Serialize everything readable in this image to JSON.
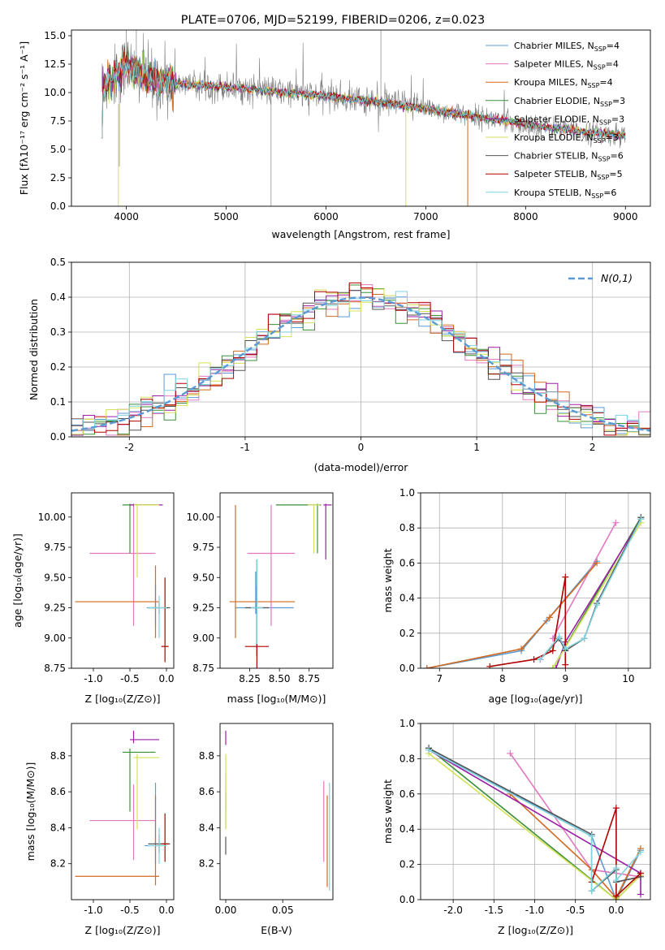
{
  "figure": {
    "title": "PLATE=0706, MJD=52199, FIBERID=0206, z=0.023"
  },
  "colors": {
    "Chabrier MILES": "#5b9bd5",
    "Salpeter MILES": "#e377c2",
    "Kroupa MILES": "#d2691e",
    "Chabrier ELODIE": "#3a8f3a",
    "Salpeter ELODIE": "#9b1fa6",
    "Kroupa ELODIE": "#d4e157",
    "Chabrier STELIB": "#555555",
    "Salpeter STELIB": "#b00000",
    "Kroupa STELIB": "#7fd3df",
    "data": "#808080",
    "normal": "#5b9bd5"
  },
  "chart_data": [
    {
      "id": "spectrum",
      "type": "line",
      "title": "PLATE=0706, MJD=52199, FIBERID=0206, z=0.023",
      "xlabel": "wavelength [Angstrom, rest frame]",
      "ylabel": "Flux [fλ10⁻¹⁷ erg cm⁻² s⁻¹ A⁻¹]",
      "xlim": [
        3450,
        9250
      ],
      "ylim": [
        0,
        15.5
      ],
      "xticks": [
        4000,
        5000,
        6000,
        7000,
        8000,
        9000
      ],
      "yticks": [
        0.0,
        2.5,
        5.0,
        7.5,
        10.0,
        12.5,
        15.0
      ],
      "grid": false,
      "legend_position": "top-right",
      "model_continuum": {
        "x": [
          3750,
          3900,
          4000,
          4100,
          4300,
          4600,
          5000,
          5500,
          6000,
          6500,
          7000,
          7500,
          8000,
          8500,
          9000
        ],
        "y": [
          10.5,
          11.5,
          12.5,
          11.7,
          11.0,
          10.7,
          10.5,
          10.1,
          9.7,
          9.2,
          8.6,
          7.9,
          7.2,
          6.6,
          6.2
        ]
      },
      "series_legend": [
        {
          "name": "Chabrier MILES, N",
          "sub": "SSP",
          "suffix": "=4"
        },
        {
          "name": "Salpeter MILES, N",
          "sub": "SSP",
          "suffix": "=4"
        },
        {
          "name": "Kroupa MILES, N",
          "sub": "SSP",
          "suffix": "=4"
        },
        {
          "name": "Chabrier ELODIE, N",
          "sub": "SSP",
          "suffix": "=3"
        },
        {
          "name": "Salpeter ELODIE, N",
          "sub": "SSP",
          "suffix": "=3"
        },
        {
          "name": "Kroupa ELODIE, N",
          "sub": "SSP",
          "suffix": "=3"
        },
        {
          "name": "Chabrier STELIB, N",
          "sub": "SSP",
          "suffix": "=6"
        },
        {
          "name": "Salpeter STELIB, N",
          "sub": "SSP",
          "suffix": "=5"
        },
        {
          "name": "Kroupa STELIB, N",
          "sub": "SSP",
          "suffix": "=6"
        }
      ]
    },
    {
      "id": "residuals",
      "type": "histogram",
      "xlabel": "(data-model)/error",
      "ylabel": "Normed distribution",
      "xlim": [
        -2.5,
        2.5
      ],
      "ylim": [
        0,
        0.5
      ],
      "xticks": [
        -2,
        -1,
        0,
        1,
        2
      ],
      "yticks": [
        0.0,
        0.1,
        0.2,
        0.3,
        0.4,
        0.5
      ],
      "grid": true,
      "legend": "N(0,1)",
      "legend_position": "top-right",
      "bin_width": 0.1,
      "bins_start": -2.5
    },
    {
      "id": "age_vs_Z",
      "type": "errorbar",
      "xlabel": "Z [log₁₀(Z/Z⊙)]",
      "ylabel": "age  [log₁₀(age/yr)]",
      "xlim": [
        -1.3,
        0.1
      ],
      "ylim": [
        8.75,
        10.2
      ],
      "xticks": [
        -1.0,
        -0.5,
        0.0
      ],
      "yticks": [
        8.75,
        9.0,
        9.25,
        9.5,
        9.75,
        10.0
      ],
      "points": [
        {
          "model": "Chabrier MILES",
          "x": -0.15,
          "y": 9.25,
          "xerr": [
            0.12,
            0.05
          ],
          "yerr": [
            0.15,
            0.2
          ]
        },
        {
          "model": "Salpeter MILES",
          "x": -0.45,
          "y": 9.7,
          "xerr": [
            0.6,
            0.3
          ],
          "yerr": [
            0.6,
            0.4
          ]
        },
        {
          "model": "Kroupa MILES",
          "x": -0.15,
          "y": 9.3,
          "xerr": [
            1.1,
            0.05
          ],
          "yerr": [
            0.3,
            0.3
          ]
        },
        {
          "model": "Chabrier ELODIE",
          "x": -0.5,
          "y": 10.1,
          "xerr": [
            0.1,
            0.35
          ],
          "yerr": [
            0.4,
            0.01
          ]
        },
        {
          "model": "Salpeter ELODIE",
          "x": -0.45,
          "y": 10.1,
          "xerr": [
            0.05,
            0.4
          ],
          "yerr": [
            0.01,
            0.01
          ]
        },
        {
          "model": "Kroupa ELODIE",
          "x": -0.4,
          "y": 10.1,
          "xerr": [
            0.05,
            0.3
          ],
          "yerr": [
            0.6,
            0.01
          ]
        },
        {
          "model": "Chabrier STELIB",
          "x": -0.1,
          "y": 9.25,
          "xerr": [
            0.15,
            0.15
          ],
          "yerr": [
            0.05,
            0.05
          ]
        },
        {
          "model": "Salpeter STELIB",
          "x": -0.02,
          "y": 8.93,
          "xerr": [
            0.05,
            0.05
          ],
          "yerr": [
            0.13,
            0.57
          ]
        },
        {
          "model": "Kroupa STELIB",
          "x": -0.1,
          "y": 9.25,
          "xerr": [
            0.15,
            0.1
          ],
          "yerr": [
            0.25,
            0.1
          ]
        }
      ]
    },
    {
      "id": "age_vs_mass",
      "type": "errorbar",
      "xlabel": "mass [log₁₀(M/M⊙)]",
      "xlim": [
        8.0,
        8.95
      ],
      "ylim": [
        8.75,
        10.2
      ],
      "xticks": [
        8.25,
        8.5,
        8.75
      ],
      "yticks": [
        8.75,
        9.0,
        9.25,
        9.5,
        9.75,
        10.0
      ],
      "points": [
        {
          "model": "Chabrier MILES",
          "x": 8.3,
          "y": 9.25,
          "xerr": [
            0.17,
            0.32
          ],
          "yerr": [
            0.05,
            0.3
          ]
        },
        {
          "model": "Salpeter MILES",
          "x": 8.43,
          "y": 9.7,
          "xerr": [
            0.2,
            0.2
          ],
          "yerr": [
            0.6,
            0.4
          ]
        },
        {
          "model": "Kroupa MILES",
          "x": 8.13,
          "y": 9.3,
          "xerr": [
            0.05,
            0.5
          ],
          "yerr": [
            0.3,
            0.8
          ]
        },
        {
          "model": "Chabrier ELODIE",
          "x": 8.82,
          "y": 10.1,
          "xerr": [
            0.35,
            0.03
          ],
          "yerr": [
            0.4,
            0.01
          ]
        },
        {
          "model": "Salpeter ELODIE",
          "x": 8.89,
          "y": 10.1,
          "xerr": [
            0.02,
            0.05
          ],
          "yerr": [
            0.45,
            0.01
          ]
        },
        {
          "model": "Kroupa ELODIE",
          "x": 8.79,
          "y": 10.1,
          "xerr": [
            0.05,
            0.05
          ],
          "yerr": [
            0.4,
            0.01
          ]
        },
        {
          "model": "Chabrier STELIB",
          "x": 8.31,
          "y": 9.25,
          "xerr": [
            0.1,
            0.1
          ],
          "yerr": [
            0.4,
            0.4
          ]
        },
        {
          "model": "Salpeter STELIB",
          "x": 8.31,
          "y": 8.93,
          "xerr": [
            0.1,
            0.1
          ],
          "yerr": [
            0.3,
            0.5
          ]
        },
        {
          "model": "Kroupa STELIB",
          "x": 8.31,
          "y": 9.25,
          "xerr": [
            0.05,
            0.05
          ],
          "yerr": [
            0.3,
            0.4
          ]
        }
      ]
    },
    {
      "id": "mass_weight_vs_age",
      "type": "line",
      "xlabel": "age  [log₁₀(age/yr)]",
      "ylabel": "mass weight",
      "xlim": [
        6.7,
        10.35
      ],
      "ylim": [
        0,
        1.0
      ],
      "xticks": [
        7,
        8,
        9,
        10
      ],
      "yticks": [
        0.0,
        0.2,
        0.4,
        0.6,
        0.8,
        1.0
      ],
      "grid": true,
      "series": [
        {
          "name": "Chabrier MILES",
          "x": [
            6.8,
            8.3,
            8.7,
            9.5
          ],
          "y": [
            0.0,
            0.1,
            0.27,
            0.61
          ]
        },
        {
          "name": "Salpeter MILES",
          "x": [
            8.8,
            9.8
          ],
          "y": [
            0.17,
            0.83
          ]
        },
        {
          "name": "Kroupa MILES",
          "x": [
            6.8,
            8.3,
            8.75,
            9.5
          ],
          "y": [
            0.0,
            0.11,
            0.29,
            0.6
          ]
        },
        {
          "name": "Chabrier ELODIE",
          "x": [
            8.8,
            10.2
          ],
          "y": [
            0.0,
            0.86
          ]
        },
        {
          "name": "Salpeter ELODIE",
          "x": [
            8.85,
            9.0,
            10.2
          ],
          "y": [
            0.0,
            0.15,
            0.85
          ]
        },
        {
          "name": "Kroupa ELODIE",
          "x": [
            8.8,
            10.2
          ],
          "y": [
            0.0,
            0.83
          ]
        },
        {
          "name": "Chabrier STELIB",
          "x": [
            8.6,
            8.9,
            9.0,
            9.3,
            9.5,
            10.2
          ],
          "y": [
            0.05,
            0.17,
            0.1,
            0.17,
            0.37,
            0.86
          ]
        },
        {
          "name": "Salpeter STELIB",
          "x": [
            7.8,
            8.5,
            8.8,
            9.0,
            9.0
          ],
          "y": [
            0.01,
            0.05,
            0.1,
            0.52,
            0.02
          ]
        },
        {
          "name": "Kroupa STELIB",
          "x": [
            8.6,
            8.9,
            9.0,
            9.3,
            9.5,
            10.2
          ],
          "y": [
            0.05,
            0.18,
            0.11,
            0.17,
            0.36,
            0.85
          ]
        }
      ]
    },
    {
      "id": "mass_vs_Z",
      "type": "errorbar",
      "xlabel": "Z [log₁₀(Z/Z⊙)]",
      "ylabel": "mass [log₁₀(M/M⊙)]",
      "xlim": [
        -1.3,
        0.1
      ],
      "ylim": [
        8.0,
        8.98
      ],
      "xticks": [
        -1.0,
        -0.5,
        0.0
      ],
      "yticks": [
        8.2,
        8.4,
        8.6,
        8.8
      ],
      "points": [
        {
          "model": "Chabrier MILES",
          "x": -0.15,
          "y": 8.3,
          "xerr": [
            0.15,
            0.05
          ],
          "yerr": [
            0.1,
            0.35
          ]
        },
        {
          "model": "Salpeter MILES",
          "x": -0.45,
          "y": 8.44,
          "xerr": [
            0.6,
            0.3
          ],
          "yerr": [
            0.22,
            0.2
          ]
        },
        {
          "model": "Kroupa MILES",
          "x": -0.15,
          "y": 8.13,
          "xerr": [
            1.1,
            0.05
          ],
          "yerr": [
            0.05,
            0.45
          ]
        },
        {
          "model": "Chabrier ELODIE",
          "x": -0.5,
          "y": 8.82,
          "xerr": [
            0.1,
            0.35
          ],
          "yerr": [
            0.33,
            0.02
          ]
        },
        {
          "model": "Salpeter ELODIE",
          "x": -0.45,
          "y": 8.89,
          "xerr": [
            0.05,
            0.35
          ],
          "yerr": [
            0.02,
            0.05
          ]
        },
        {
          "model": "Kroupa ELODIE",
          "x": -0.4,
          "y": 8.79,
          "xerr": [
            0.05,
            0.3
          ],
          "yerr": [
            0.4,
            0.02
          ]
        },
        {
          "model": "Chabrier STELIB",
          "x": -0.1,
          "y": 8.31,
          "xerr": [
            0.15,
            0.15
          ],
          "yerr": [
            0.05,
            0.05
          ]
        },
        {
          "model": "Salpeter STELIB",
          "x": -0.02,
          "y": 8.31,
          "xerr": [
            0.05,
            0.05
          ],
          "yerr": [
            0.1,
            0.17
          ]
        },
        {
          "model": "Kroupa STELIB",
          "x": -0.1,
          "y": 8.3,
          "xerr": [
            0.15,
            0.1
          ],
          "yerr": [
            0.1,
            0.1
          ]
        }
      ]
    },
    {
      "id": "mass_vs_ebv",
      "type": "errorbar",
      "xlabel": "E(B-V)",
      "xlim": [
        -0.005,
        0.094
      ],
      "ylim": [
        8.0,
        8.98
      ],
      "xticks": [
        0.0,
        0.05
      ],
      "yticks": [
        8.2,
        8.4,
        8.6,
        8.8
      ],
      "points": [
        {
          "model": "Chabrier MILES",
          "x": 0.0,
          "y": 8.5,
          "xerr": [
            0,
            0
          ],
          "yerr": [
            0.1,
            0.1
          ]
        },
        {
          "model": "Salpeter MILES",
          "x": 0.0,
          "y": 8.6,
          "xerr": [
            0,
            0
          ],
          "yerr": [
            0.1,
            0.1
          ]
        },
        {
          "model": "Salpeter ELODIE",
          "x": 0.0,
          "y": 8.89,
          "xerr": [
            0,
            0
          ],
          "yerr": [
            0.03,
            0.05
          ]
        },
        {
          "model": "Kroupa ELODIE",
          "x": 0.0,
          "y": 8.79,
          "xerr": [
            0,
            0
          ],
          "yerr": [
            0.4,
            0.02
          ]
        },
        {
          "model": "Chabrier STELIB",
          "x": 0.0,
          "y": 8.3,
          "xerr": [
            0,
            0
          ],
          "yerr": [
            0.05,
            0.05
          ]
        },
        {
          "model": "Salpeter MILES",
          "x": 0.086,
          "y": 8.43,
          "xerr": [
            0,
            0
          ],
          "yerr": [
            0.22,
            0.23
          ]
        },
        {
          "model": "Kroupa MILES",
          "x": 0.089,
          "y": 8.33,
          "xerr": [
            0,
            0
          ],
          "yerr": [
            0.26,
            0.25
          ]
        },
        {
          "model": "Kroupa STELIB",
          "x": 0.091,
          "y": 8.35,
          "xerr": [
            0,
            0
          ],
          "yerr": [
            0.3,
            0.3
          ]
        }
      ]
    },
    {
      "id": "mass_weight_vs_Z",
      "type": "line",
      "xlabel": "Z [log₁₀(Z/Z⊙)]",
      "ylabel": "mass weight",
      "xlim": [
        -2.4,
        0.42
      ],
      "ylim": [
        0,
        1.0
      ],
      "xticks": [
        -2.0,
        -1.5,
        -1.0,
        -0.5,
        0.0
      ],
      "yticks": [
        0.0,
        0.2,
        0.4,
        0.6,
        0.8,
        1.0
      ],
      "grid": true,
      "series": [
        {
          "name": "Chabrier MILES",
          "x": [
            -2.3,
            -1.3,
            -0.3,
            0.0,
            0.3
          ],
          "y": [
            0.86,
            0.61,
            0.36,
            0.0,
            0.28
          ]
        },
        {
          "name": "Salpeter MILES",
          "x": [
            -1.3,
            -0.3,
            0.3
          ],
          "y": [
            0.83,
            0.17,
            0.13
          ]
        },
        {
          "name": "Kroupa MILES",
          "x": [
            -1.3,
            -0.3,
            0.0,
            0.3
          ],
          "y": [
            0.6,
            0.17,
            0.01,
            0.29
          ]
        },
        {
          "name": "Chabrier ELODIE",
          "x": [
            -2.3,
            0.0,
            0.3
          ],
          "y": [
            0.86,
            0.0,
            0.14
          ]
        },
        {
          "name": "Salpeter ELODIE",
          "x": [
            -2.3,
            0.3,
            0.3
          ],
          "y": [
            0.85,
            0.15,
            0.03
          ]
        },
        {
          "name": "Kroupa ELODIE",
          "x": [
            -2.3,
            0.0,
            0.3
          ],
          "y": [
            0.83,
            0.0,
            0.14
          ]
        },
        {
          "name": "Chabrier STELIB",
          "x": [
            -2.3,
            -0.3,
            -0.3,
            0.0,
            0.0,
            0.3
          ],
          "y": [
            0.86,
            0.37,
            0.05,
            0.17,
            0.1,
            0.13
          ]
        },
        {
          "name": "Salpeter STELIB",
          "x": [
            -0.3,
            0.0,
            0.0,
            0.3
          ],
          "y": [
            0.1,
            0.52,
            0.02,
            0.15
          ]
        },
        {
          "name": "Kroupa STELIB",
          "x": [
            -2.3,
            -0.3,
            -0.3,
            0.0,
            0.0,
            0.3
          ],
          "y": [
            0.85,
            0.36,
            0.05,
            0.18,
            0.11,
            0.27
          ]
        }
      ]
    }
  ]
}
